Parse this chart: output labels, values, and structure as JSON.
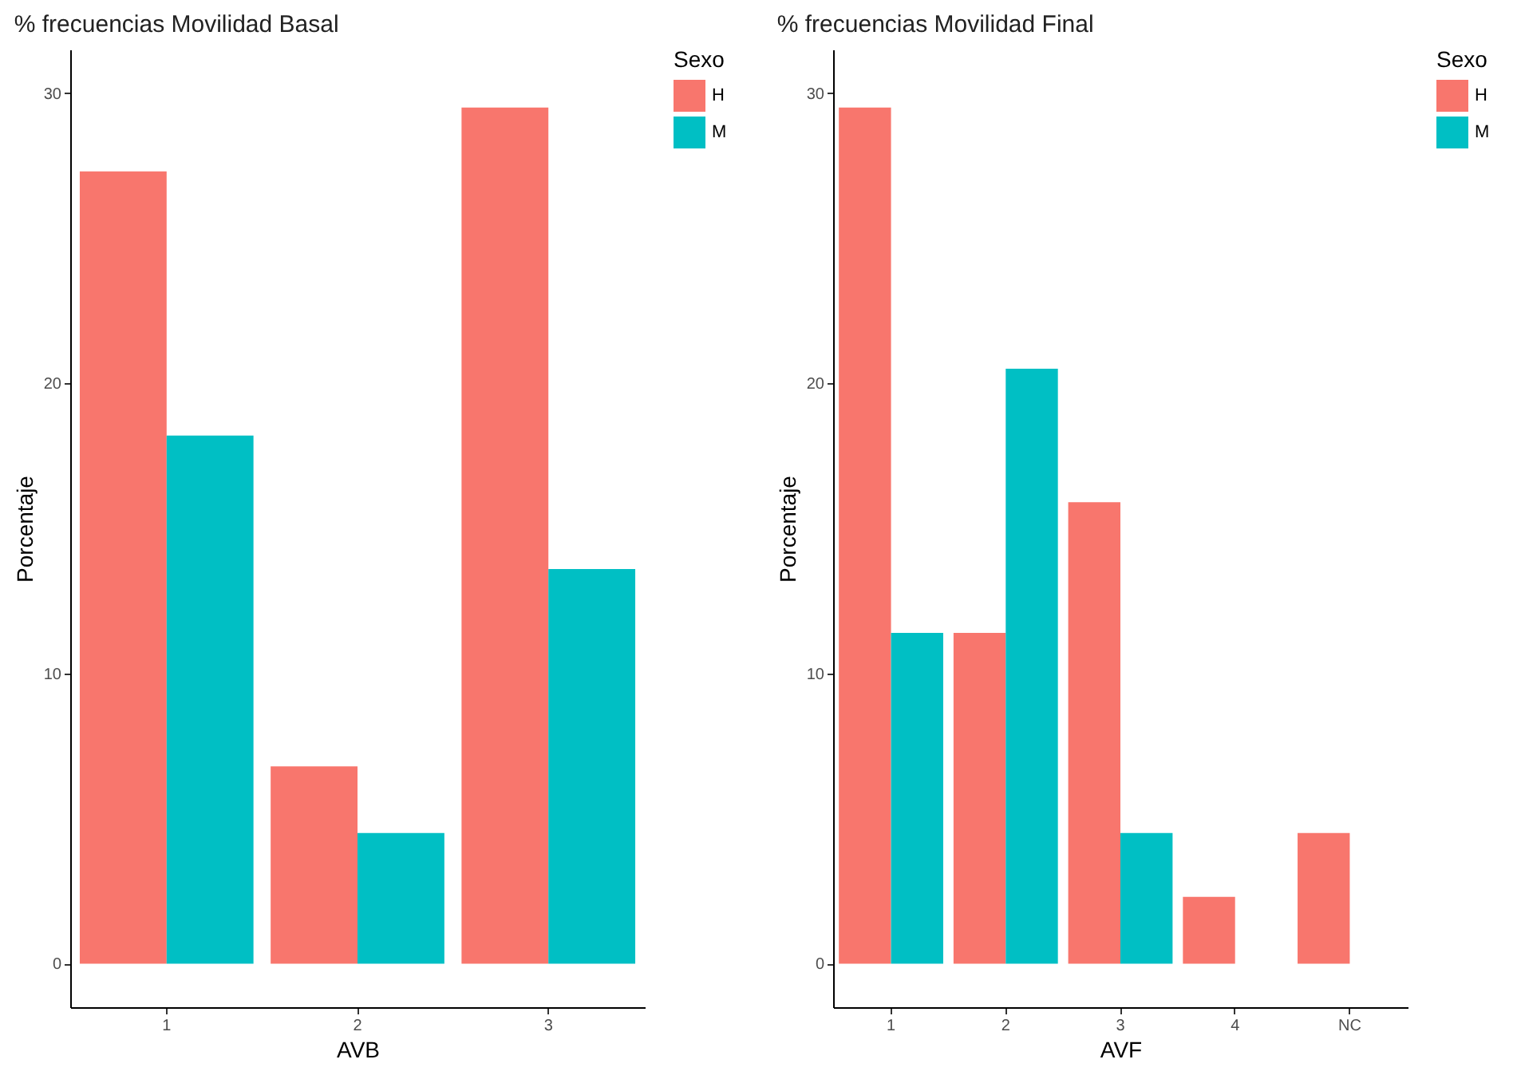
{
  "chart_data": [
    {
      "type": "bar",
      "title": "% frecuencias Movilidad Basal",
      "xlabel": "AVB",
      "ylabel": "Porcentaje",
      "legend_title": "Sexo",
      "legend": "right",
      "categories": [
        "1",
        "2",
        "3"
      ],
      "series": [
        {
          "name": "H",
          "color": "#f8766d",
          "values": [
            27.3,
            6.8,
            29.5
          ]
        },
        {
          "name": "M",
          "color": "#00bfc4",
          "values": [
            18.2,
            4.5,
            13.6
          ]
        }
      ],
      "ylim": [
        -1.5,
        31.5
      ],
      "yticks": [
        0,
        10,
        20,
        30
      ],
      "grid": false
    },
    {
      "type": "bar",
      "title": "% frecuencias Movilidad Final",
      "xlabel": "AVF",
      "ylabel": "Porcentaje",
      "legend_title": "Sexo",
      "legend": "right",
      "categories": [
        "1",
        "2",
        "3",
        "4",
        "NC"
      ],
      "series": [
        {
          "name": "H",
          "color": "#f8766d",
          "values": [
            29.5,
            11.4,
            15.9,
            2.3,
            4.5
          ]
        },
        {
          "name": "M",
          "color": "#00bfc4",
          "values": [
            11.4,
            20.5,
            4.5,
            0,
            0
          ]
        }
      ],
      "ylim": [
        -1.5,
        31.5
      ],
      "yticks": [
        0,
        10,
        20,
        30
      ],
      "grid": false
    }
  ]
}
